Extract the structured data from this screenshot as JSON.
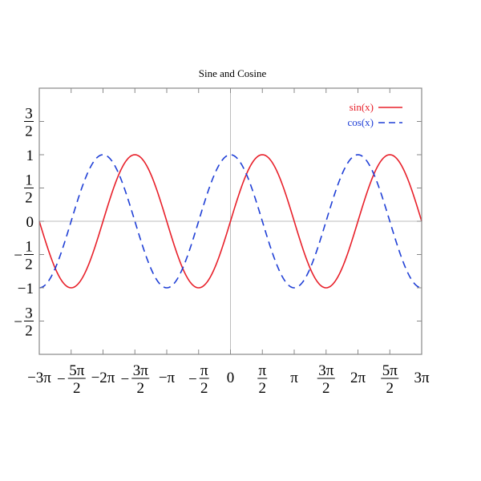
{
  "chart_data": {
    "type": "line",
    "title": "Sine and Cosine",
    "xlabel": "",
    "ylabel": "",
    "xlim": [
      -9.42478,
      9.42478
    ],
    "ylim": [
      -2.0,
      2.0
    ],
    "grid": false,
    "zero_lines": true,
    "legend_position": "top-right",
    "series": [
      {
        "name": "sin(x)",
        "function": "sin",
        "color": "#e8202a",
        "line_style": "solid",
        "x": [
          -9.42478,
          -8.63938,
          -7.85398,
          -7.06858,
          -6.28319,
          -5.49779,
          -4.71239,
          -3.92699,
          -3.14159,
          -2.35619,
          -1.5708,
          -0.7854,
          0,
          0.7854,
          1.5708,
          2.35619,
          3.14159,
          3.92699,
          4.71239,
          5.49779,
          6.28319,
          7.06858,
          7.85398,
          8.63938,
          9.42478
        ],
        "y": [
          0,
          -0.70711,
          -1,
          -0.70711,
          0,
          0.70711,
          1,
          0.70711,
          0,
          -0.70711,
          -1,
          -0.70711,
          0,
          0.70711,
          1,
          0.70711,
          0,
          -0.70711,
          -1,
          -0.70711,
          0,
          0.70711,
          1,
          0.70711,
          0
        ]
      },
      {
        "name": "cos(x)",
        "function": "cos",
        "color": "#1f3fd6",
        "line_style": "dashed",
        "x": [
          -9.42478,
          -8.63938,
          -7.85398,
          -7.06858,
          -6.28319,
          -5.49779,
          -4.71239,
          -3.92699,
          -3.14159,
          -2.35619,
          -1.5708,
          -0.7854,
          0,
          0.7854,
          1.5708,
          2.35619,
          3.14159,
          3.92699,
          4.71239,
          5.49779,
          6.28319,
          7.06858,
          7.85398,
          8.63938,
          9.42478
        ],
        "y": [
          -1,
          -0.70711,
          0,
          0.70711,
          1,
          0.70711,
          0,
          -0.70711,
          -1,
          -0.70711,
          0,
          0.70711,
          1,
          0.70711,
          0,
          -0.70711,
          -1,
          -0.70711,
          0,
          0.70711,
          1,
          0.70711,
          0,
          -0.70711,
          -1
        ]
      }
    ],
    "x_ticks": [
      {
        "value": -9.42478,
        "text": "−3π"
      },
      {
        "value": -7.85398,
        "prefix": "−",
        "num": "5π",
        "den": "2"
      },
      {
        "value": -6.28319,
        "text": "−2π"
      },
      {
        "value": -4.71239,
        "prefix": "−",
        "num": "3π",
        "den": "2"
      },
      {
        "value": -3.14159,
        "text": "−π"
      },
      {
        "value": -1.5708,
        "prefix": "−",
        "num": "π",
        "den": "2"
      },
      {
        "value": 0,
        "text": "0"
      },
      {
        "value": 1.5708,
        "num": "π",
        "den": "2"
      },
      {
        "value": 3.14159,
        "text": "π"
      },
      {
        "value": 4.71239,
        "num": "3π",
        "den": "2"
      },
      {
        "value": 6.28319,
        "text": "2π"
      },
      {
        "value": 7.85398,
        "num": "5π",
        "den": "2"
      },
      {
        "value": 9.42478,
        "text": "3π"
      }
    ],
    "y_ticks": [
      {
        "value": 1.5,
        "num": "3",
        "den": "2"
      },
      {
        "value": 1,
        "text": "1"
      },
      {
        "value": 0.5,
        "num": "1",
        "den": "2"
      },
      {
        "value": 0,
        "text": "0"
      },
      {
        "value": -0.5,
        "prefix": "−",
        "num": "1",
        "den": "2"
      },
      {
        "value": -1,
        "text": "−1"
      },
      {
        "value": -1.5,
        "prefix": "−",
        "num": "3",
        "den": "2"
      }
    ]
  }
}
